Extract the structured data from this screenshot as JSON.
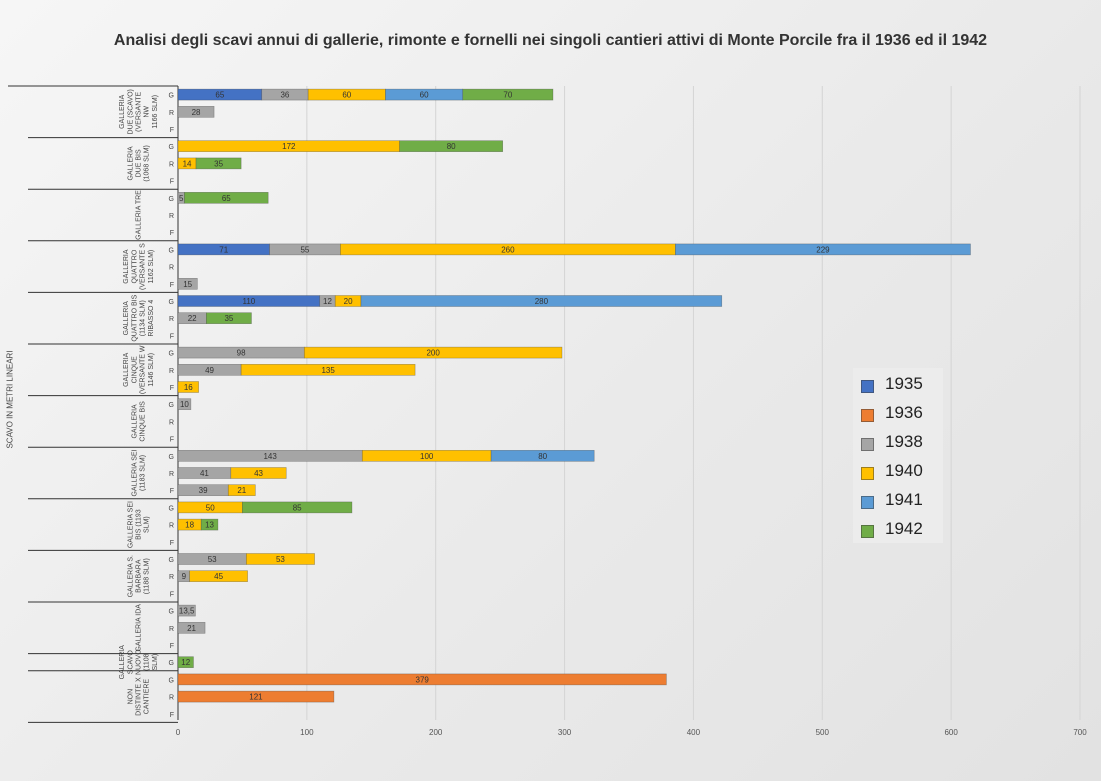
{
  "title": "Analisi degli scavi annui di gallerie, rimonte e fornelli nei singoli cantieri attivi di Monte Porcile fra il 1936 ed il 1942",
  "chart_data": {
    "type": "bar",
    "orientation": "horizontal",
    "stacked": true,
    "title": "Analisi degli scavi annui di gallerie, rimonte e fornelli nei singoli cantieri attivi di Monte Porcile fra il 1936 ed il 1942",
    "ylabel": "SCAVO IN METRI LINEARI",
    "xlabel": "",
    "xlim": [
      0,
      700
    ],
    "x_ticks": [
      0,
      100,
      200,
      300,
      400,
      500,
      600,
      700
    ],
    "grid": "vertical",
    "legend_position": "right",
    "series": [
      {
        "name": "1935",
        "color": "#4472C4"
      },
      {
        "name": "1936",
        "color": "#ED7D31"
      },
      {
        "name": "1938",
        "color": "#A5A5A5"
      },
      {
        "name": "1940",
        "color": "#FFC000"
      },
      {
        "name": "1941",
        "color": "#5B9BD5"
      },
      {
        "name": "1942",
        "color": "#70AD47"
      }
    ],
    "groups": [
      {
        "label": "GALLERIA DUE (SCAVO) (VERSANTE NW 1166 SLM)",
        "label_lines": [
          "GALLERIA",
          "DUE (SCAVO)",
          "(VERSANTE",
          "NW",
          "1166 SLM)"
        ],
        "rows": [
          {
            "cat": "G",
            "values": {
              "1935": 65,
              "1938": 36,
              "1940": 60,
              "1941": 60,
              "1942": 70
            }
          },
          {
            "cat": "R",
            "values": {
              "1938": 28
            }
          },
          {
            "cat": "F",
            "values": {}
          }
        ]
      },
      {
        "label": "GALLERIA DUE BIS (1068 SLM)",
        "label_lines": [
          "GALLERIA",
          "DUE BIS",
          "(1068 SLM)"
        ],
        "rows": [
          {
            "cat": "G",
            "values": {
              "1940": 172,
              "1942": 80
            }
          },
          {
            "cat": "R",
            "values": {
              "1940": 14,
              "1942": 35
            }
          },
          {
            "cat": "F",
            "values": {}
          }
        ]
      },
      {
        "label": "GALLERIA TRE",
        "label_lines": [
          "GALLERIA TRE"
        ],
        "rows": [
          {
            "cat": "G",
            "values": {
              "1938": 5,
              "1942": 65
            }
          },
          {
            "cat": "R",
            "values": {}
          },
          {
            "cat": "F",
            "values": {}
          }
        ]
      },
      {
        "label": "GALLERIA QUATTRO (VERSANTE S 1162 SLM)",
        "label_lines": [
          "GALLERIA",
          "QUATTRO",
          "(VERSANTE S",
          "1162 SLM)"
        ],
        "rows": [
          {
            "cat": "G",
            "values": {
              "1935": 71,
              "1938": 55,
              "1940": 260,
              "1941": 229
            }
          },
          {
            "cat": "R",
            "values": {}
          },
          {
            "cat": "F",
            "values": {
              "1938": 15
            }
          }
        ]
      },
      {
        "label": "GALLERIA QUATTRO BIS (1134 SLM) RIBASSO 4",
        "label_lines": [
          "GALLERIA",
          "QUATTRO BIS",
          "(1134 SLM)",
          "RIBASSO 4"
        ],
        "rows": [
          {
            "cat": "G",
            "values": {
              "1935": 110,
              "1938": 12,
              "1940": 20,
              "1941": 280
            }
          },
          {
            "cat": "R",
            "values": {
              "1938": 22,
              "1942": 35
            }
          },
          {
            "cat": "F",
            "values": {}
          }
        ]
      },
      {
        "label": "GALLERIA CINQUE (VERSANTE W 1146 SLM)",
        "label_lines": [
          "GALLERIA",
          "CINQUE",
          "(VERSANTE W",
          "1146 SLM)"
        ],
        "rows": [
          {
            "cat": "G",
            "values": {
              "1938": 98,
              "1940": 200
            }
          },
          {
            "cat": "R",
            "values": {
              "1938": 49,
              "1940": 135
            }
          },
          {
            "cat": "F",
            "values": {
              "1940": 16
            }
          }
        ]
      },
      {
        "label": "GALLERIA CINQUE BIS",
        "label_lines": [
          "GALLERIA",
          "CINQUE BIS"
        ],
        "rows": [
          {
            "cat": "G",
            "values": {
              "1938": 10
            }
          },
          {
            "cat": "R",
            "values": {}
          },
          {
            "cat": "F",
            "values": {}
          }
        ]
      },
      {
        "label": "GALLERIA SEI (1183 SLM)",
        "label_lines": [
          "GALLERIA SEI",
          "(1183 SLM)"
        ],
        "rows": [
          {
            "cat": "G",
            "values": {
              "1938": 143,
              "1940": 100,
              "1941": 80
            }
          },
          {
            "cat": "R",
            "values": {
              "1938": 41,
              "1940": 43
            }
          },
          {
            "cat": "F",
            "values": {
              "1938": 39,
              "1940": 21
            }
          }
        ]
      },
      {
        "label": "GALLERIA SEI BIS (1193 SLM)",
        "label_lines": [
          "GALLERIA SEI",
          "BIS (1193",
          "SLM)"
        ],
        "rows": [
          {
            "cat": "G",
            "values": {
              "1940": 50,
              "1942": 85
            }
          },
          {
            "cat": "R",
            "values": {
              "1940": 18,
              "1942": 13
            }
          },
          {
            "cat": "F",
            "values": {}
          }
        ]
      },
      {
        "label": "GALLERIA S. BARBARA (1188 SLM)",
        "label_lines": [
          "GALLERIA S.",
          "BARBARA",
          "(1188 SLM)"
        ],
        "rows": [
          {
            "cat": "G",
            "values": {
              "1938": 53,
              "1940": 53
            }
          },
          {
            "cat": "R",
            "values": {
              "1938": 9,
              "1940": 45
            }
          },
          {
            "cat": "F",
            "values": {}
          }
        ]
      },
      {
        "label": "GALLERIA IDA",
        "label_lines": [
          "GALLERIA IDA"
        ],
        "rows": [
          {
            "cat": "G",
            "values": {
              "1938": 13.5
            }
          },
          {
            "cat": "R",
            "values": {
              "1938": 21
            }
          },
          {
            "cat": "F",
            "values": {}
          }
        ]
      },
      {
        "label": "GALLERIA SCAVO NUOVO (1108 SLM)",
        "label_lines": [
          "GALLERIA",
          "SCAVO",
          "NUOVO",
          "(1108",
          "SLM)"
        ],
        "rows": [
          {
            "cat": "G",
            "values": {
              "1942": 12
            }
          }
        ]
      },
      {
        "label": "NON DISTINTE X CANTIERE",
        "label_lines": [
          "NON",
          "DISTINTE X",
          "CANTIERE"
        ],
        "rows": [
          {
            "cat": "G",
            "values": {
              "1936": 379
            }
          },
          {
            "cat": "R",
            "values": {
              "1936": 121
            }
          },
          {
            "cat": "F",
            "values": {}
          }
        ]
      }
    ]
  }
}
